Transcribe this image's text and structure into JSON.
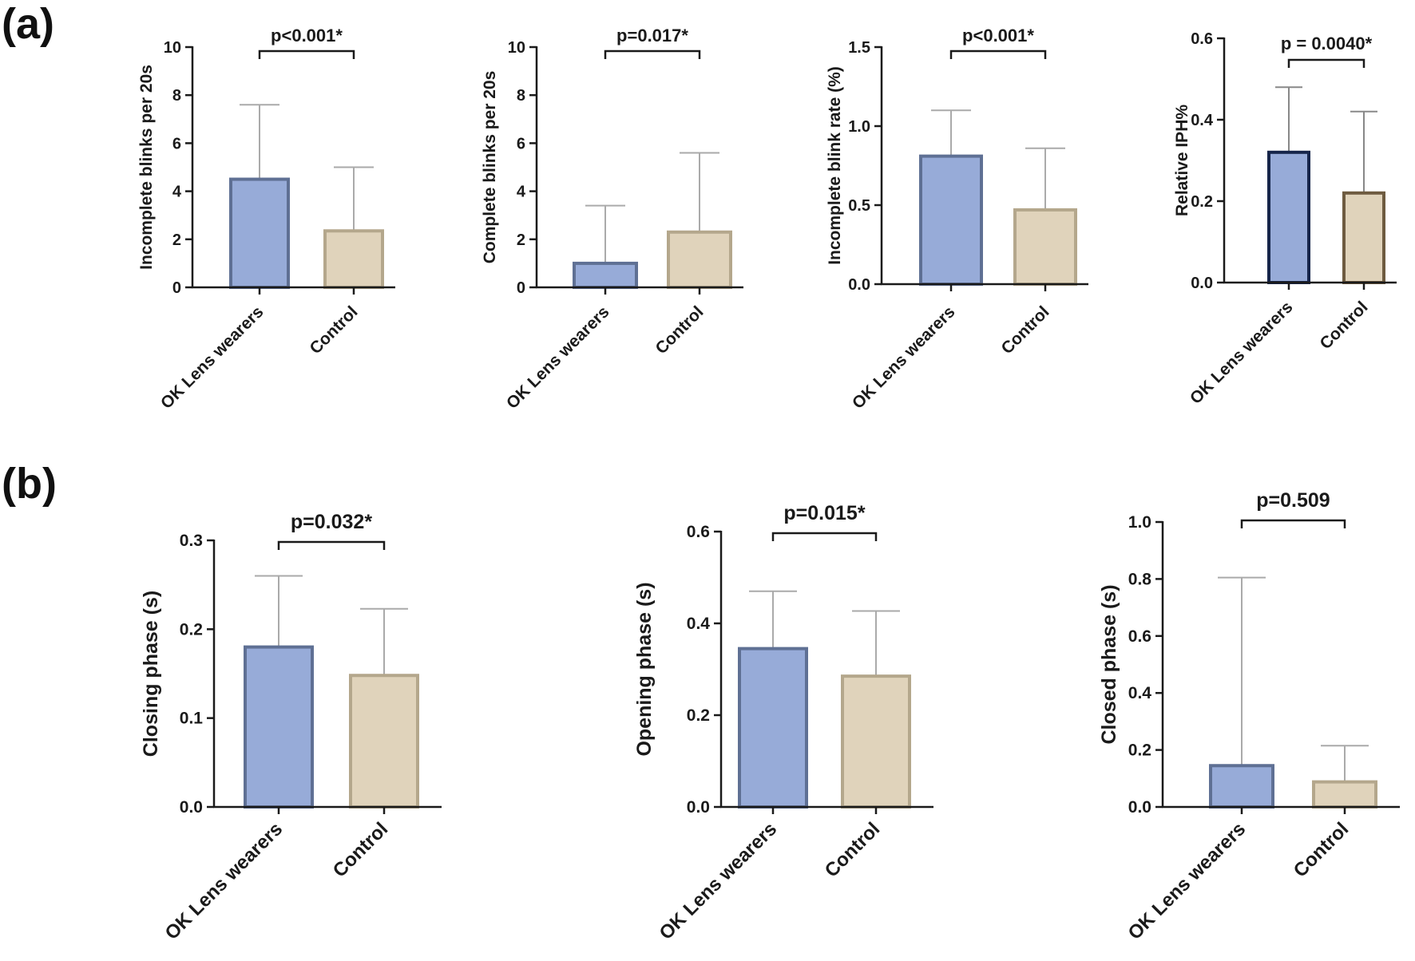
{
  "panels": [
    {
      "label": "(a)"
    },
    {
      "label": "(b)"
    }
  ],
  "chart_data": [
    {
      "type": "bar",
      "panel": "(a)",
      "categories": [
        "OK Lens wearers",
        "Control"
      ],
      "values": [
        4.5,
        2.35
      ],
      "error_upper": [
        7.6,
        5.0
      ],
      "ylabel": "Incomplete blinks per 20s",
      "ylim": [
        0,
        10
      ],
      "yticks": [
        "0",
        "2",
        "4",
        "6",
        "8",
        "10"
      ],
      "significance": "p<0.001*",
      "colors": {
        "fill": [
          "#97abd8",
          "#e0d3bb"
        ],
        "edge": [
          "#5f7094",
          "#b4a78c"
        ],
        "error": [
          "#aaaaaa",
          "#aaaaaa"
        ]
      }
    },
    {
      "type": "bar",
      "panel": "(a)",
      "categories": [
        "OK Lens wearers",
        "Control"
      ],
      "values": [
        1.0,
        2.3
      ],
      "error_upper": [
        3.4,
        5.6
      ],
      "ylabel": "Complete blinks per 20s",
      "ylim": [
        0,
        10
      ],
      "yticks": [
        "0",
        "2",
        "4",
        "6",
        "8",
        "10"
      ],
      "significance": "p=0.017*",
      "colors": {
        "fill": [
          "#97abd8",
          "#e0d3bb"
        ],
        "edge": [
          "#5f7094",
          "#b4a78c"
        ],
        "error": [
          "#aaaaaa",
          "#aaaaaa"
        ]
      }
    },
    {
      "type": "bar",
      "panel": "(a)",
      "categories": [
        "OK Lens wearers",
        "Control"
      ],
      "values": [
        0.81,
        0.47
      ],
      "error_upper": [
        1.1,
        0.86
      ],
      "ylabel": "Incomplete blink rate (%)",
      "ylim": [
        0,
        1.5
      ],
      "yticks": [
        "0.0",
        "0.5",
        "1.0",
        "1.5"
      ],
      "significance": "p<0.001*",
      "colors": {
        "fill": [
          "#97abd8",
          "#e0d3bb"
        ],
        "edge": [
          "#5f7094",
          "#b4a78c"
        ],
        "error": [
          "#aaaaaa",
          "#aaaaaa"
        ]
      }
    },
    {
      "type": "bar",
      "panel": "(a)",
      "categories": [
        "OK Lens wearers",
        "Control"
      ],
      "values": [
        0.32,
        0.22
      ],
      "error_upper": [
        0.48,
        0.42
      ],
      "ylabel": "Relative IPH%",
      "ylim": [
        0,
        0.6
      ],
      "yticks": [
        "0.0",
        "0.2",
        "0.4",
        "0.6"
      ],
      "significance": "p = 0.0040*",
      "colors": {
        "fill": [
          "#97abd8",
          "#e0d3bb"
        ],
        "edge": [
          "#16254a",
          "#6e5b40"
        ],
        "error": [
          "#888888",
          "#888888"
        ]
      }
    },
    {
      "type": "bar",
      "panel": "(b)",
      "categories": [
        "OK Lens wearers",
        "Control"
      ],
      "values": [
        0.18,
        0.148
      ],
      "error_upper": [
        0.26,
        0.223
      ],
      "ylabel": "Closing phase (s)",
      "ylim": [
        0,
        0.3
      ],
      "yticks": [
        "0.0",
        "0.1",
        "0.2",
        "0.3"
      ],
      "significance": "p=0.032*",
      "colors": {
        "fill": [
          "#97abd8",
          "#e0d3bb"
        ],
        "edge": [
          "#5f7094",
          "#b4a78c"
        ],
        "error": [
          "#aaaaaa",
          "#aaaaaa"
        ]
      }
    },
    {
      "type": "bar",
      "panel": "(b)",
      "categories": [
        "OK Lens wearers",
        "Control"
      ],
      "values": [
        0.345,
        0.285
      ],
      "error_upper": [
        0.47,
        0.427
      ],
      "ylabel": "Opening phase (s)",
      "ylim": [
        0,
        0.6
      ],
      "yticks": [
        "0.0",
        "0.2",
        "0.4",
        "0.6"
      ],
      "significance": "p=0.015*",
      "colors": {
        "fill": [
          "#97abd8",
          "#e0d3bb"
        ],
        "edge": [
          "#5f7094",
          "#b4a78c"
        ],
        "error": [
          "#aaaaaa",
          "#aaaaaa"
        ]
      }
    },
    {
      "type": "bar",
      "panel": "(b)",
      "categories": [
        "OK Lens wearers",
        "Control"
      ],
      "values": [
        0.145,
        0.088
      ],
      "error_upper": [
        0.805,
        0.215
      ],
      "ylabel": "Closed phase (s)",
      "ylim": [
        0,
        1.0
      ],
      "yticks": [
        "0.0",
        "0.2",
        "0.4",
        "0.6",
        "0.8",
        "1.0"
      ],
      "significance": "p=0.509",
      "colors": {
        "fill": [
          "#97abd8",
          "#e0d3bb"
        ],
        "edge": [
          "#5f7094",
          "#b4a78c"
        ],
        "error": [
          "#aaaaaa",
          "#aaaaaa"
        ]
      }
    }
  ]
}
